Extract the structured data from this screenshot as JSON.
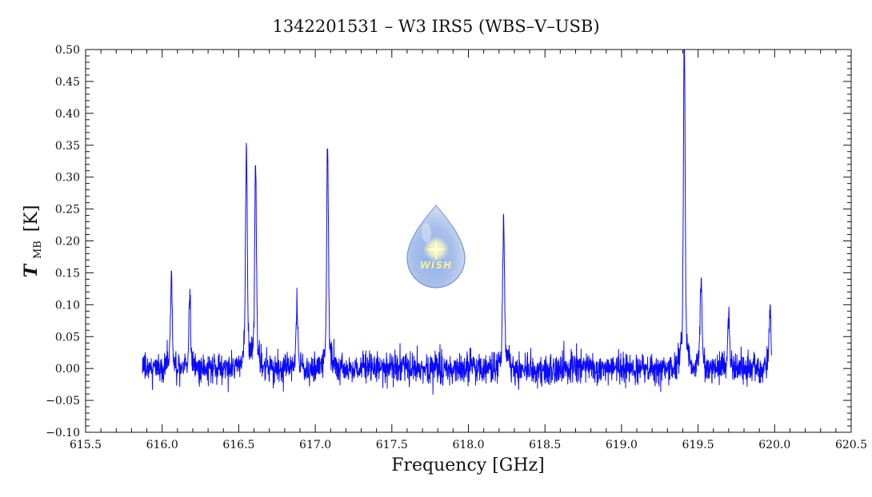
{
  "chart_data": {
    "type": "line",
    "title": "1342201531 – W3 IRS5 (WBS–V–USB)",
    "xlabel": "Frequency [GHz]",
    "ylabel": {
      "main": "T",
      "subscript": "MB",
      "unit": "[K]"
    },
    "xlim": [
      615.5,
      620.5
    ],
    "ylim": [
      -0.1,
      0.5
    ],
    "x_ticks": [
      "615.5",
      "616.0",
      "616.5",
      "617.0",
      "617.5",
      "618.0",
      "618.5",
      "619.0",
      "619.5",
      "620.0",
      "620.5"
    ],
    "y_ticks": [
      "-0.10",
      "-0.05",
      "0.00",
      "0.05",
      "0.10",
      "0.15",
      "0.20",
      "0.25",
      "0.30",
      "0.35",
      "0.40",
      "0.45",
      "0.50"
    ],
    "grid": false,
    "legend": "none",
    "series": [
      {
        "color": "#0a0aff",
        "x_range": [
          615.87,
          619.98
        ],
        "baseline": 0.0,
        "noise_rms": 0.012,
        "peaks": [
          {
            "x": 616.06,
            "y": 0.125
          },
          {
            "x": 616.18,
            "y": 0.1
          },
          {
            "x": 616.55,
            "y": 0.31
          },
          {
            "x": 616.61,
            "y": 0.29
          },
          {
            "x": 616.88,
            "y": 0.085
          },
          {
            "x": 617.08,
            "y": 0.31
          },
          {
            "x": 618.23,
            "y": 0.215
          },
          {
            "x": 619.41,
            "y": 0.465
          },
          {
            "x": 619.52,
            "y": 0.135
          },
          {
            "x": 619.7,
            "y": 0.075
          },
          {
            "x": 619.97,
            "y": 0.085
          }
        ]
      }
    ],
    "logo": {
      "name": "wish-logo",
      "text": "WISH"
    }
  }
}
